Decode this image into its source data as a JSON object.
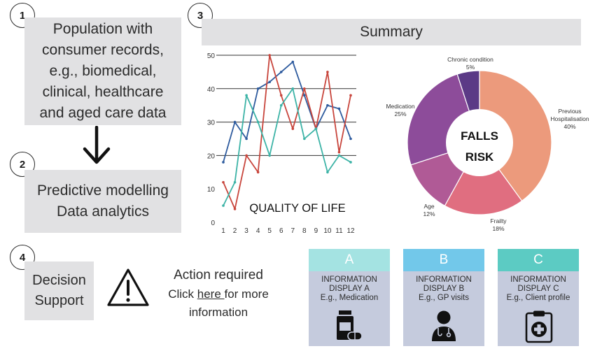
{
  "steps": {
    "step1": {
      "number": "1",
      "lines": [
        "Population with",
        "consumer records,",
        "e.g., biomedical,",
        "clinical, healthcare",
        "and aged care data"
      ]
    },
    "step2": {
      "number": "2",
      "lines": [
        "Predictive modelling",
        "Data analytics"
      ]
    },
    "step3": {
      "number": "3",
      "title": "Summary"
    },
    "step4": {
      "number": "4",
      "lines": [
        "Decision",
        "Support"
      ]
    }
  },
  "action": {
    "title": "Action required",
    "click_prefix": "Click ",
    "link_text": "here ",
    "click_suffix": "for more",
    "last_line": "information"
  },
  "chart_data": [
    {
      "type": "line",
      "title": "QUALITY OF LIFE",
      "x": [
        1,
        2,
        3,
        4,
        5,
        6,
        7,
        8,
        9,
        10,
        11,
        12
      ],
      "ylim": [
        0,
        50
      ],
      "yticks": [
        0,
        10,
        20,
        30,
        40,
        50
      ],
      "grid": "horizontal lines at 20, 30, 40, 50",
      "series": [
        {
          "color": "#2e5b9e",
          "values": [
            18,
            30,
            25,
            40,
            42,
            45,
            48,
            38,
            28,
            35,
            34,
            25
          ]
        },
        {
          "color": "#c8453c",
          "values": [
            12,
            4,
            20,
            15,
            50,
            38,
            28,
            40,
            28,
            45,
            21,
            38
          ]
        },
        {
          "color": "#3cb3a6",
          "values": [
            5,
            12,
            38,
            30,
            20,
            35,
            40,
            25,
            28,
            15,
            20,
            18
          ]
        }
      ]
    },
    {
      "type": "pie",
      "center_lines": [
        "FALLS",
        "RISK"
      ],
      "slices": [
        {
          "name": "Previous",
          "name2": "Hospitalisation",
          "value": 40,
          "label": "40%",
          "color": "#ec9a7c"
        },
        {
          "name": "Frailty",
          "value": 18,
          "label": "18%",
          "color": "#e06e80"
        },
        {
          "name": "Age",
          "value": 12,
          "label": "12%",
          "color": "#b05a96"
        },
        {
          "name": "Medication",
          "value": 25,
          "label": "25%",
          "color": "#8d4c9a"
        },
        {
          "name": "Chronic condition",
          "value": 5,
          "label": "5%",
          "color": "#5b3a86"
        }
      ]
    }
  ],
  "cards": [
    {
      "letter": "A",
      "line1": "INFORMATION",
      "line2": "DISPLAY A",
      "line3": "E.g., Medication",
      "head_color": "#a4e3e2",
      "icon": "medication-bottle-icon"
    },
    {
      "letter": "B",
      "line1": "INFORMATION",
      "line2": "DISPLAY B",
      "line3": "E.g., GP visits",
      "head_color": "#72c8ea",
      "icon": "doctor-icon"
    },
    {
      "letter": "C",
      "line1": "INFORMATION",
      "line2": "DISPLAY C",
      "line3": "E.g., Client profile",
      "head_color": "#5ccbc3",
      "icon": "clipboard-medical-icon"
    }
  ]
}
